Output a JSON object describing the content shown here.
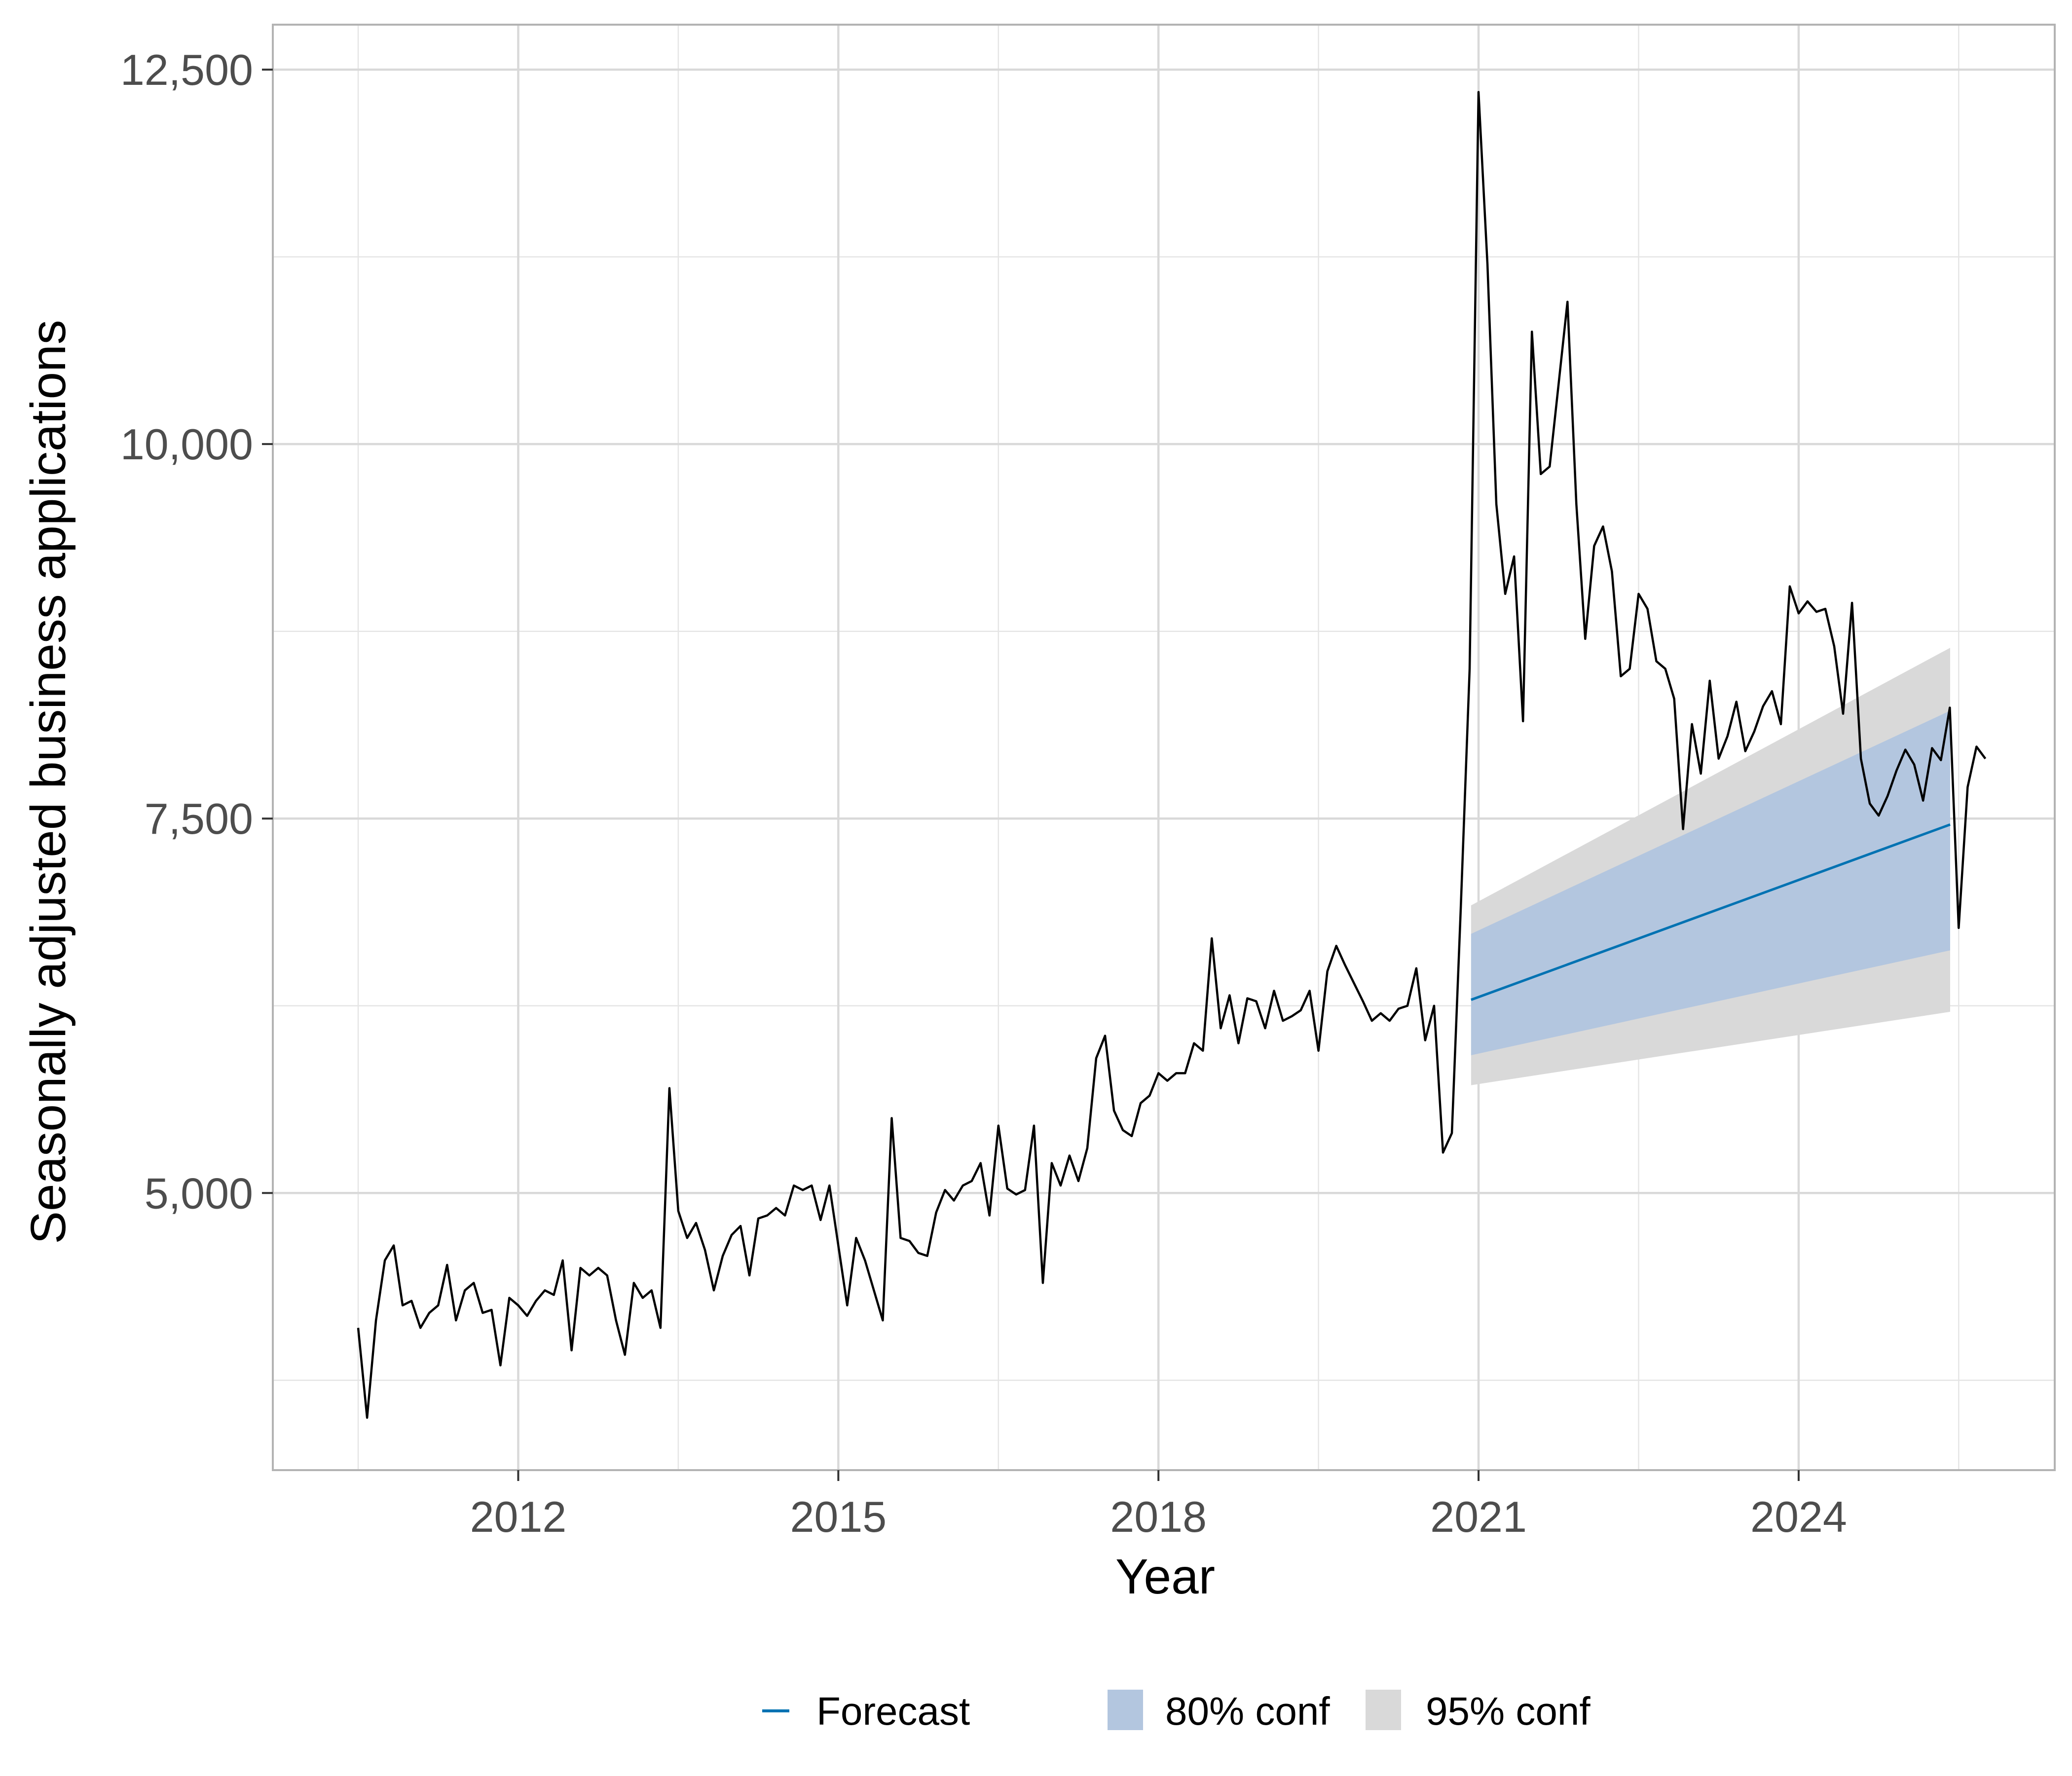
{
  "chart_data": {
    "type": "line",
    "xlabel": "Year",
    "ylabel": "Seasonally adjusted business applications",
    "xlim": [
      2009.7,
      2026.4
    ],
    "ylim": [
      3150,
      12800
    ],
    "x_ticks": [
      2012,
      2015,
      2018,
      2021,
      2024
    ],
    "x_tick_labels": [
      "2012",
      "2015",
      "2018",
      "2021",
      "2024"
    ],
    "y_ticks": [
      5000,
      7500,
      10000,
      12500
    ],
    "y_tick_labels": [
      "5,000",
      "7,500",
      "10,000",
      "12,500"
    ],
    "grid": true,
    "legend_position": "bottom",
    "legend": [
      {
        "key": "forecast",
        "label": "Forecast"
      },
      {
        "key": "conf80",
        "label": "80% conf"
      },
      {
        "key": "conf95",
        "label": "95% conf"
      }
    ],
    "colors": {
      "history": "#000000",
      "forecast": "#0072B2",
      "conf80": "#b3c6df",
      "conf95": "#d9d9d9",
      "grid": "#e5e5e5",
      "panel_border": "#b3b3b3"
    },
    "series": [
      {
        "key": "history",
        "x_start": 2010.5,
        "x_step": 0.08333333,
        "values": [
          4100,
          3500,
          4150,
          4550,
          4650,
          4250,
          4280,
          4100,
          4200,
          4250,
          4520,
          4150,
          4350,
          4400,
          4200,
          4220,
          3850,
          4300,
          4250,
          4180,
          4280,
          4350,
          4320,
          4550,
          3950,
          4500,
          4450,
          4500,
          4450,
          4150,
          3920,
          4400,
          4300,
          4350,
          4100,
          5700,
          4880,
          4700,
          4800,
          4620,
          4350,
          4580,
          4720,
          4780,
          4450,
          4830,
          4850,
          4900,
          4850,
          5050,
          5020,
          5050,
          4820,
          5050,
          4650,
          4250,
          4700,
          4550,
          4350,
          4150,
          5500,
          4700,
          4680,
          4600,
          4580,
          4870,
          5020,
          4950,
          5050,
          5080,
          5200,
          4850,
          5450,
          5030,
          4990,
          5020,
          5450,
          4400,
          5200,
          5050,
          5250,
          5080,
          5300,
          5900,
          6050,
          5550,
          5420,
          5380,
          5600,
          5650,
          5800,
          5750,
          5800,
          5800,
          6000,
          5950,
          6700,
          6100,
          6320,
          6000,
          6300,
          6280,
          6100,
          6350,
          6150,
          6180,
          6220,
          6350,
          5950,
          6480,
          6650,
          6520,
          6400,
          6280,
          6150,
          6200,
          6150,
          6230,
          6250,
          6500,
          6020,
          6250,
          5270,
          5400,
          6900,
          8500,
          12350,
          11200,
          9600,
          9000,
          9250,
          8150,
          10750,
          9800,
          9850,
          10400,
          10950,
          9600,
          8700,
          9320,
          9450,
          9150,
          8450,
          8500,
          9000,
          8900,
          8550,
          8500,
          8300,
          7430,
          8130,
          7800,
          8420,
          7900,
          8050,
          8280,
          7950,
          8080,
          8250,
          8350,
          8130,
          9050,
          8870,
          8950,
          8880,
          8900,
          8650,
          8200,
          8940,
          7900,
          7600,
          7520,
          7650,
          7820,
          7960,
          7860,
          7620,
          7970,
          7890,
          8240,
          6770,
          7710,
          7980,
          7900
        ]
      },
      {
        "key": "forecast",
        "x": [
          2020.93,
          2025.42
        ],
        "values": [
          6290,
          7460
        ],
        "lower80": [
          5920,
          6620
        ],
        "upper80": [
          6730,
          8220
        ],
        "lower95": [
          5720,
          6210
        ],
        "upper95": [
          6920,
          8640
        ]
      }
    ]
  }
}
